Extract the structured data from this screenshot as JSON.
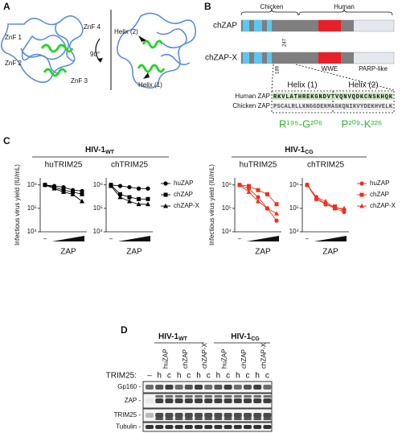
{
  "panel_letters": [
    "A",
    "B",
    "C",
    "D"
  ],
  "panel_a": {
    "labels": [
      "ZnF 1",
      "ZnF 2",
      "ZnF 3",
      "ZnF 4",
      "90°",
      "Helix (2)",
      "Helix (1)"
    ]
  },
  "panel_b": {
    "species": [
      "Chicken",
      "Human"
    ],
    "constructs": [
      "chZAP",
      "chZAP-X"
    ],
    "positions": [
      "247",
      "189"
    ],
    "domains": [
      "WWE",
      "PARP-like"
    ],
    "helices": [
      "Helix (1)",
      "Helix (2)"
    ],
    "alignment": [
      {
        "name": "Human ZAP",
        "seq": "RKVLATHREKGNDVTVQNVQDKCNSKHQK"
      },
      {
        "name": "Chicken ZAP",
        "seq": "PSCALRLLKNGGDEKMASKQNIKVYDEKHVELK"
      }
    ],
    "ranges": [
      "R¹⁹⁵-G²⁰⁶",
      "P²⁰⁹-K²²⁶"
    ]
  },
  "panel_c_groups": [
    {
      "name": "HIV-1",
      "sub": "WT"
    },
    {
      "name": "HIV-1",
      "sub": "CG"
    }
  ],
  "chart_data": [
    {
      "type": "line",
      "title": "huTRIM25",
      "ylabel": "Infectious virus yield (IU/mL)",
      "xlabel": "ZAP",
      "categories": [
        "–",
        null,
        null,
        null,
        null
      ],
      "log_y": true,
      "ylim": [
        10000,
        2000000
      ],
      "yticks": [
        {
          "value": 10000,
          "label": "10⁴"
        },
        {
          "value": 100000,
          "label": "10⁵"
        },
        {
          "value": 1000000,
          "label": "10⁶"
        }
      ],
      "series": [
        {
          "color": "#000000",
          "marker": "circle",
          "values": [
            1000000,
            900000,
            800000,
            600000,
            550000
          ]
        },
        {
          "color": "#000000",
          "marker": "square",
          "values": [
            1000000,
            800000,
            600000,
            500000,
            400000
          ]
        },
        {
          "color": "#000000",
          "marker": "triangle",
          "values": [
            1000000,
            700000,
            500000,
            400000,
            200000
          ]
        }
      ]
    },
    {
      "type": "line",
      "title": "chTRIM25",
      "xlabel": "ZAP",
      "legend": true,
      "categories": [
        "–",
        null,
        null,
        null,
        null
      ],
      "log_y": true,
      "ylim": [
        10000,
        2000000
      ],
      "yticks": [
        {
          "value": 10000,
          "label": "10⁴"
        },
        {
          "value": 100000,
          "label": "10⁵"
        },
        {
          "value": 1000000,
          "label": "10⁶"
        }
      ],
      "series": [
        {
          "name": "huZAP",
          "color": "#000000",
          "marker": "circle",
          "values": [
            1000000,
            900000,
            800000,
            700000,
            700000
          ]
        },
        {
          "name": "chZAP",
          "color": "#000000",
          "marker": "square",
          "values": [
            1000000,
            400000,
            300000,
            250000,
            250000
          ]
        },
        {
          "name": "chZAP-X",
          "color": "#000000",
          "marker": "triangle",
          "values": [
            900000,
            300000,
            200000,
            150000,
            150000
          ]
        }
      ]
    },
    {
      "type": "line",
      "title": "huTRIM25",
      "ylabel": "Infectious virus yield (IU/mL)",
      "xlabel": "ZAP",
      "categories": [
        "–",
        null,
        null,
        null,
        null
      ],
      "log_y": true,
      "ylim": [
        10000,
        2000000
      ],
      "yticks": [
        {
          "value": 10000,
          "label": "10⁴"
        },
        {
          "value": 100000,
          "label": "10⁵"
        },
        {
          "value": 1000000,
          "label": "10⁶"
        }
      ],
      "series": [
        {
          "color": "#e8331f",
          "marker": "circle",
          "values": [
            1000000,
            700000,
            300000,
            100000,
            30000
          ]
        },
        {
          "color": "#e8331f",
          "marker": "square",
          "values": [
            1000000,
            900000,
            600000,
            400000,
            150000
          ]
        },
        {
          "color": "#e8331f",
          "marker": "triangle",
          "values": [
            1000000,
            500000,
            200000,
            100000,
            60000
          ]
        }
      ]
    },
    {
      "type": "line",
      "title": "chTRIM25",
      "xlabel": "ZAP",
      "legend": true,
      "categories": [
        "–",
        null,
        null,
        null,
        null
      ],
      "log_y": true,
      "ylim": [
        10000,
        2000000
      ],
      "yticks": [
        {
          "value": 10000,
          "label": "10⁴"
        },
        {
          "value": 100000,
          "label": "10⁵"
        },
        {
          "value": 1000000,
          "label": "10⁶"
        }
      ],
      "series": [
        {
          "name": "huZAP",
          "color": "#e8331f",
          "marker": "circle",
          "values": [
            1000000,
            300000,
            150000,
            100000,
            70000
          ]
        },
        {
          "name": "chZAP",
          "color": "#e8331f",
          "marker": "square",
          "values": [
            1000000,
            250000,
            150000,
            120000,
            80000
          ]
        },
        {
          "name": "chZAP-X",
          "color": "#e8331f",
          "marker": "triangle",
          "values": [
            1000000,
            300000,
            200000,
            100000,
            100000
          ]
        }
      ]
    }
  ],
  "panel_d": {
    "groups": [
      {
        "name": "HIV-1",
        "sub": "WT"
      },
      {
        "name": "HIV-1",
        "sub": "CG"
      }
    ],
    "lanes": [
      "huZAP",
      "chZAP",
      "chZAP-X",
      "huZAP",
      "chZAP",
      "chZAP-X"
    ],
    "trim25_label": "TRIM25:",
    "trim25_lanes": [
      "–",
      "h",
      "c",
      "h",
      "c",
      "h",
      "c",
      "h",
      "c",
      "h",
      "c",
      "h",
      "c"
    ],
    "blots": [
      "Gp160 -",
      "ZAP -",
      "TRIM25 -",
      "Tubulin -"
    ]
  }
}
